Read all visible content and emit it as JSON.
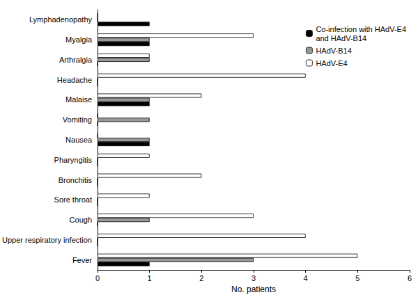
{
  "chart_data": {
    "type": "bar",
    "orientation": "horizontal",
    "categories": [
      "Fever",
      "Upper respiratory infection",
      "Cough",
      "Sore throat",
      "Bronchitis",
      "Pharyngitis",
      "Nausea",
      "Vomiting",
      "Malaise",
      "Headache",
      "Arthralgia",
      "Myalgia",
      "Lymphadenopathy"
    ],
    "series": [
      {
        "name": "Co-infection with HAdV-E4\nand HAdV-B14",
        "color": "#000000",
        "values": [
          1,
          0,
          0,
          0,
          0,
          0,
          1,
          0,
          1,
          0,
          0,
          1,
          1
        ]
      },
      {
        "name": "HAdV-B14",
        "color": "#999999",
        "values": [
          3,
          0,
          1,
          0,
          0,
          0,
          1,
          1,
          1,
          0,
          1,
          1,
          0
        ]
      },
      {
        "name": "HAdV-E4",
        "color": "#ffffff",
        "values": [
          5,
          4,
          3,
          1,
          2,
          1,
          0,
          0,
          2,
          4,
          1,
          3,
          0
        ]
      }
    ],
    "x_label": "No. patients",
    "xlim": [
      0,
      6
    ],
    "xticks": [
      0,
      1,
      2,
      3,
      4,
      5,
      6
    ],
    "grid": false,
    "legend": "upper right"
  }
}
